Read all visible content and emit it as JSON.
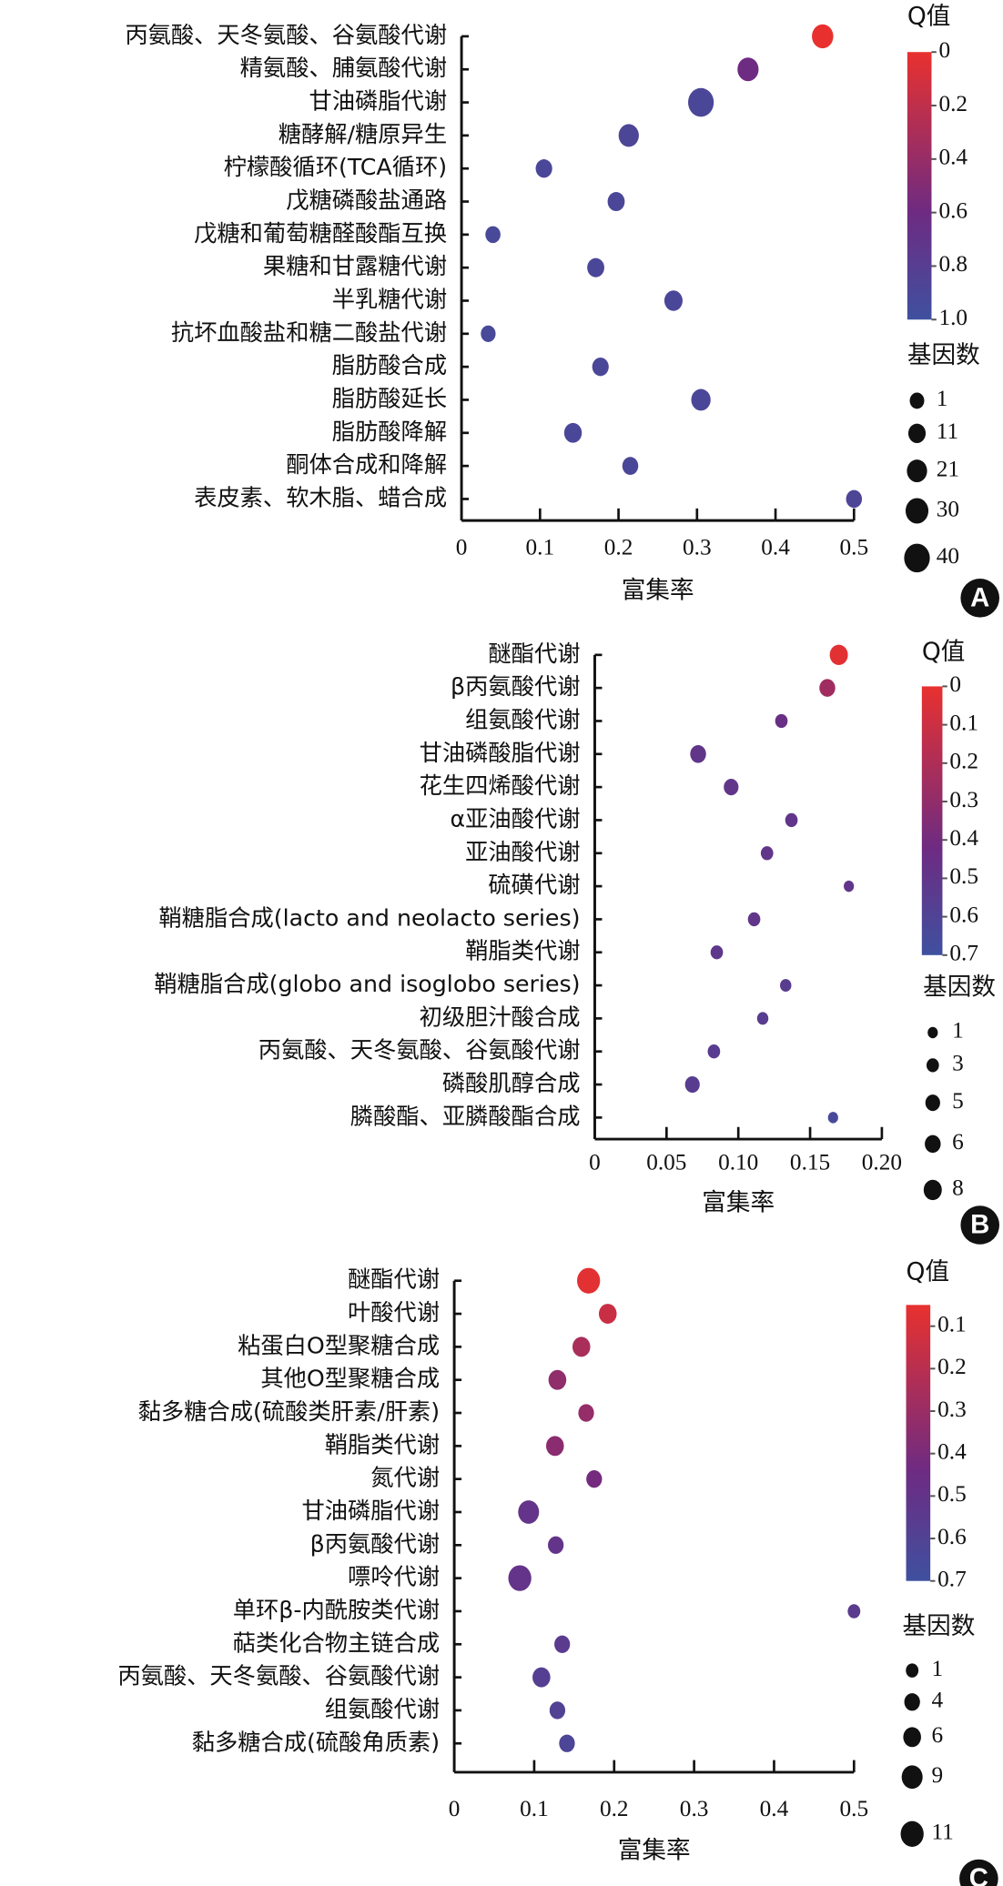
{
  "colors": {
    "low_q": "#e8312f",
    "mid_q": "#6e2b82",
    "high_q": "#3f509f",
    "size_legend": "#111111"
  },
  "chart_data": [
    {
      "type": "scatter",
      "panel": "A",
      "xlabel": "富集率",
      "xticks": [
        "0",
        "0.1",
        "0.2",
        "0.3",
        "0.4",
        "0.5"
      ],
      "xtick_values": [
        0,
        0.1,
        0.2,
        0.3,
        0.4,
        0.5
      ],
      "xlim": [
        0,
        0.5
      ],
      "color_title": "Q值",
      "color_ticks": [
        "0",
        "0.2",
        "0.4",
        "0.6",
        "0.8",
        "1.0"
      ],
      "color_tick_values": [
        0,
        0.2,
        0.4,
        0.6,
        0.8,
        1.0
      ],
      "color_range": [
        0,
        1.0
      ],
      "size_title": "基因数",
      "size_legend": [
        "1",
        "11",
        "21",
        "30",
        "40"
      ],
      "size_legend_values": [
        1,
        11,
        21,
        30,
        40
      ],
      "categories": [
        "丙氨酸、天冬氨酸、谷氨酸代谢",
        "精氨酸、脯氨酸代谢",
        "甘油磷脂代谢",
        "糖酵解/糖原异生",
        "柠檬酸循环(TCA循环)",
        "戊糖磷酸盐通路",
        "戊糖和葡萄糖醛酸酯互换",
        "果糖和甘露糖代谢",
        "半乳糖代谢",
        "抗坏血酸盐和糖二酸盐代谢",
        "脂肪酸合成",
        "脂肪酸延长",
        "脂肪酸降解",
        "酮体合成和降解",
        "表皮素、软木脂、蜡合成"
      ],
      "x": [
        0.46,
        0.365,
        0.305,
        0.213,
        0.105,
        0.197,
        0.04,
        0.171,
        0.27,
        0.034,
        0.177,
        0.305,
        0.142,
        0.215,
        0.5
      ],
      "q": [
        0.0,
        0.6,
        0.9,
        0.88,
        0.9,
        0.9,
        0.92,
        0.9,
        0.9,
        0.92,
        0.9,
        0.9,
        0.9,
        0.9,
        0.88
      ],
      "gene_count": [
        25,
        24,
        40,
        21,
        8,
        10,
        3,
        10,
        14,
        2,
        8,
        18,
        12,
        6,
        6
      ]
    },
    {
      "type": "scatter",
      "panel": "B",
      "xlabel": "富集率",
      "xticks": [
        "0",
        "0.05",
        "0.10",
        "0.15",
        "0.20"
      ],
      "xtick_values": [
        0,
        0.05,
        0.1,
        0.15,
        0.2
      ],
      "xlim": [
        0,
        0.2
      ],
      "color_title": "Q值",
      "color_ticks": [
        "0",
        "0.1",
        "0.2",
        "0.3",
        "0.4",
        "0.5",
        "0.6",
        "0.7"
      ],
      "color_tick_values": [
        0,
        0.1,
        0.2,
        0.3,
        0.4,
        0.5,
        0.6,
        0.7
      ],
      "color_range": [
        0,
        0.7
      ],
      "size_title": "基因数",
      "size_legend": [
        "1",
        "3",
        "5",
        "6",
        "8"
      ],
      "size_legend_values": [
        1,
        3,
        5,
        6,
        8
      ],
      "categories": [
        "醚酯代谢",
        "β丙氨酸代谢",
        "组氨酸代谢",
        "甘油磷酸脂代谢",
        "花生四烯酸代谢",
        "α亚油酸代谢",
        "亚油酸代谢",
        "硫磺代谢",
        "鞘糖脂合成(lacto and neolacto series)",
        "鞘脂类代谢",
        "鞘糖脂合成(globo and isoglobo series)",
        "初级胆汁酸合成",
        "丙氨酸、天冬氨酸、谷氨酸代谢",
        "磷酸肌醇合成",
        "膦酸酯、亚膦酸酯合成"
      ],
      "x": [
        0.17,
        0.162,
        0.13,
        0.072,
        0.095,
        0.137,
        0.12,
        0.177,
        0.111,
        0.085,
        0.133,
        0.117,
        0.083,
        0.068,
        0.166
      ],
      "q": [
        0.02,
        0.25,
        0.45,
        0.5,
        0.5,
        0.5,
        0.5,
        0.5,
        0.5,
        0.52,
        0.55,
        0.55,
        0.55,
        0.55,
        0.65
      ],
      "gene_count": [
        8,
        6,
        3,
        6,
        5,
        3,
        3,
        1,
        3,
        3,
        2,
        2,
        3,
        5,
        1
      ]
    },
    {
      "type": "scatter",
      "panel": "C",
      "xlabel": "富集率",
      "xticks": [
        "0",
        "0.1",
        "0.2",
        "0.3",
        "0.4",
        "0.5"
      ],
      "xtick_values": [
        0,
        0.1,
        0.2,
        0.3,
        0.4,
        0.5
      ],
      "xlim": [
        0,
        0.5
      ],
      "color_title": "Q值",
      "color_ticks": [
        "0.1",
        "0.2",
        "0.3",
        "0.4",
        "0.5",
        "0.6",
        "0.7"
      ],
      "color_tick_values": [
        0.1,
        0.2,
        0.3,
        0.4,
        0.5,
        0.6,
        0.7
      ],
      "color_range": [
        0.05,
        0.7
      ],
      "size_title": "基因数",
      "size_legend": [
        "1",
        "4",
        "6",
        "9",
        "11"
      ],
      "size_legend_values": [
        1,
        4,
        6,
        9,
        11
      ],
      "categories": [
        "醚酯代谢",
        "叶酸代谢",
        "粘蛋白O型聚糖合成",
        "其他O型聚糖合成",
        "黏多糖合成(硫酸类肝素/肝素)",
        "鞘脂类代谢",
        "氮代谢",
        "甘油磷脂代谢",
        "β丙氨酸代谢",
        "嘌呤代谢",
        "单环β-内酰胺类代谢",
        "萜类化合物主链合成",
        "丙氨酸、天冬氨酸、谷氨酸代谢",
        "组氨酸代谢",
        "黏多糖合成(硫酸角质素)"
      ],
      "x": [
        0.168,
        0.192,
        0.159,
        0.129,
        0.165,
        0.126,
        0.175,
        0.093,
        0.127,
        0.082,
        0.5,
        0.135,
        0.109,
        0.129,
        0.141
      ],
      "q": [
        0.07,
        0.15,
        0.25,
        0.33,
        0.32,
        0.35,
        0.42,
        0.5,
        0.5,
        0.5,
        0.55,
        0.55,
        0.58,
        0.6,
        0.62
      ],
      "gene_count": [
        11,
        6,
        6,
        6,
        4,
        6,
        4,
        9,
        4,
        11,
        1,
        4,
        6,
        4,
        4
      ]
    }
  ]
}
